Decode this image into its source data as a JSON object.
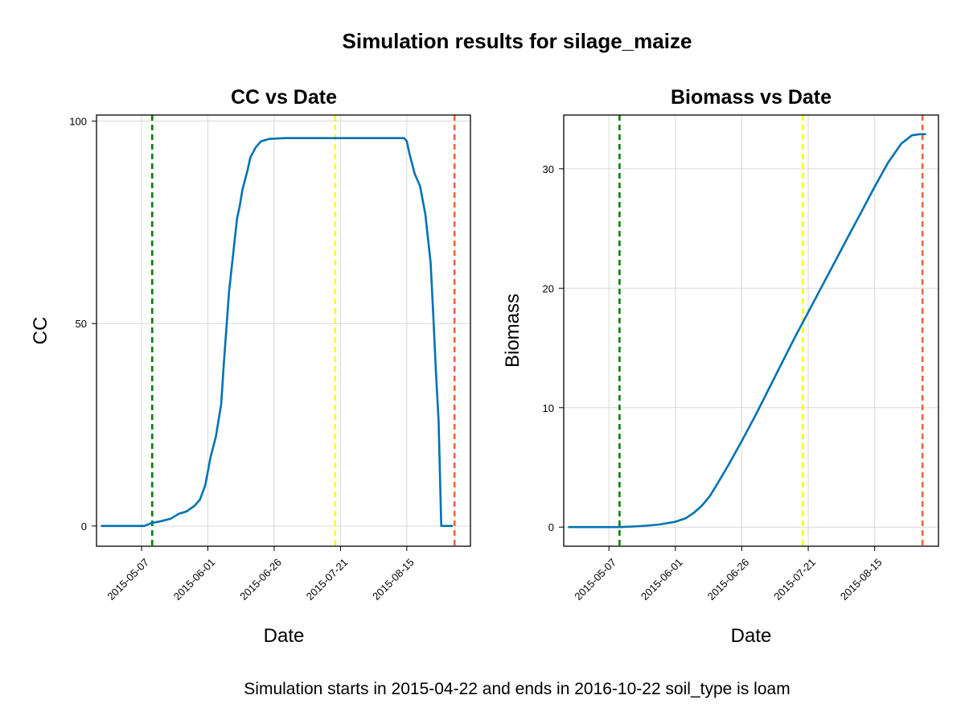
{
  "figure": {
    "title": "Simulation results for silage_maize",
    "footnote": "Simulation starts in 2015-04-22 and ends in 2016-10-22 soil_type is loam"
  },
  "colors": {
    "series": "#0072b2",
    "sowing_line": "#008000",
    "flowering_line": "#ffff00",
    "harvest_line": "#f4623a",
    "grid": "#d9d9d9"
  },
  "chart_data": [
    {
      "type": "line",
      "title": "CC vs Date",
      "xlabel": "Date",
      "ylabel": "CC",
      "x_ticks": [
        "2015-05-07",
        "2015-06-01",
        "2015-06-26",
        "2015-07-21",
        "2015-08-15"
      ],
      "y_ticks": [
        0,
        50,
        100
      ],
      "xlim": [
        "2015-04-20",
        "2015-09-08"
      ],
      "ylim": [
        -5,
        101.5
      ],
      "grid": true,
      "series": [
        {
          "x": [
            "2015-04-22",
            "2015-05-08",
            "2015-05-11",
            "2015-05-13",
            "2015-05-15",
            "2015-05-18",
            "2015-05-21",
            "2015-05-24",
            "2015-05-27",
            "2015-05-29",
            "2015-05-31",
            "2015-06-02",
            "2015-06-04",
            "2015-06-05",
            "2015-06-06",
            "2015-06-07",
            "2015-06-09",
            "2015-06-10",
            "2015-06-11",
            "2015-06-12",
            "2015-06-13",
            "2015-06-14",
            "2015-06-16",
            "2015-06-17",
            "2015-06-19",
            "2015-06-21",
            "2015-06-24",
            "2015-06-27",
            "2015-06-30",
            "2015-07-02",
            "2015-07-03",
            "2015-07-04",
            "2015-07-05",
            "2015-07-10",
            "2015-07-15",
            "2015-07-20",
            "2015-07-25",
            "2015-07-30",
            "2015-08-04",
            "2015-08-09",
            "2015-08-14",
            "2015-08-15",
            "2015-08-16",
            "2015-08-18",
            "2015-08-20",
            "2015-08-22",
            "2015-08-24",
            "2015-08-25",
            "2015-08-26",
            "2015-08-27",
            "2015-08-28",
            "2015-08-29",
            "2015-08-30",
            "2015-09-01"
          ],
          "values": [
            0,
            0,
            0.8,
            1,
            1.3,
            1.8,
            3,
            3.6,
            5,
            6.5,
            10,
            17,
            22,
            26,
            30,
            40,
            58,
            64,
            70,
            76,
            79,
            83,
            88,
            91,
            93.5,
            95,
            95.6,
            95.7,
            95.8,
            95.8,
            95.8,
            95.8,
            95.8,
            95.8,
            95.8,
            95.8,
            95.8,
            95.8,
            95.8,
            95.8,
            95.8,
            95,
            92,
            87,
            84,
            77,
            65,
            52,
            38,
            26,
            0,
            0,
            0,
            0
          ]
        }
      ],
      "vlines": [
        {
          "x": "2015-05-11",
          "color": "sowing_line"
        },
        {
          "x": "2015-07-19",
          "color": "flowering_line"
        },
        {
          "x": "2015-09-02",
          "color": "harvest_line"
        }
      ]
    },
    {
      "type": "line",
      "title": "Biomass vs Date",
      "xlabel": "Date",
      "ylabel": "Biomass",
      "x_ticks": [
        "2015-05-07",
        "2015-06-01",
        "2015-06-26",
        "2015-07-21",
        "2015-08-15"
      ],
      "y_ticks": [
        0,
        10,
        20,
        30
      ],
      "xlim": [
        "2015-04-20",
        "2015-09-08"
      ],
      "ylim": [
        -1.6,
        34.5
      ],
      "grid": true,
      "series": [
        {
          "x": [
            "2015-04-22",
            "2015-05-01",
            "2015-05-07",
            "2015-05-11",
            "2015-05-16",
            "2015-05-21",
            "2015-05-26",
            "2015-06-01",
            "2015-06-05",
            "2015-06-08",
            "2015-06-11",
            "2015-06-14",
            "2015-06-17",
            "2015-06-21",
            "2015-06-26",
            "2015-07-01",
            "2015-07-06",
            "2015-07-11",
            "2015-07-16",
            "2015-07-21",
            "2015-07-26",
            "2015-07-31",
            "2015-08-05",
            "2015-08-10",
            "2015-08-15",
            "2015-08-20",
            "2015-08-25",
            "2015-08-29",
            "2015-09-01",
            "2015-09-03"
          ],
          "values": [
            0,
            0,
            0,
            0,
            0.05,
            0.12,
            0.22,
            0.45,
            0.75,
            1.2,
            1.8,
            2.6,
            3.7,
            5.2,
            7.2,
            9.3,
            11.5,
            13.7,
            15.9,
            18.0,
            20.1,
            22.2,
            24.3,
            26.4,
            28.5,
            30.5,
            32.1,
            32.8,
            32.9,
            32.9
          ]
        }
      ],
      "vlines": [
        {
          "x": "2015-05-11",
          "color": "sowing_line"
        },
        {
          "x": "2015-07-19",
          "color": "flowering_line"
        },
        {
          "x": "2015-09-02",
          "color": "harvest_line"
        }
      ]
    }
  ]
}
